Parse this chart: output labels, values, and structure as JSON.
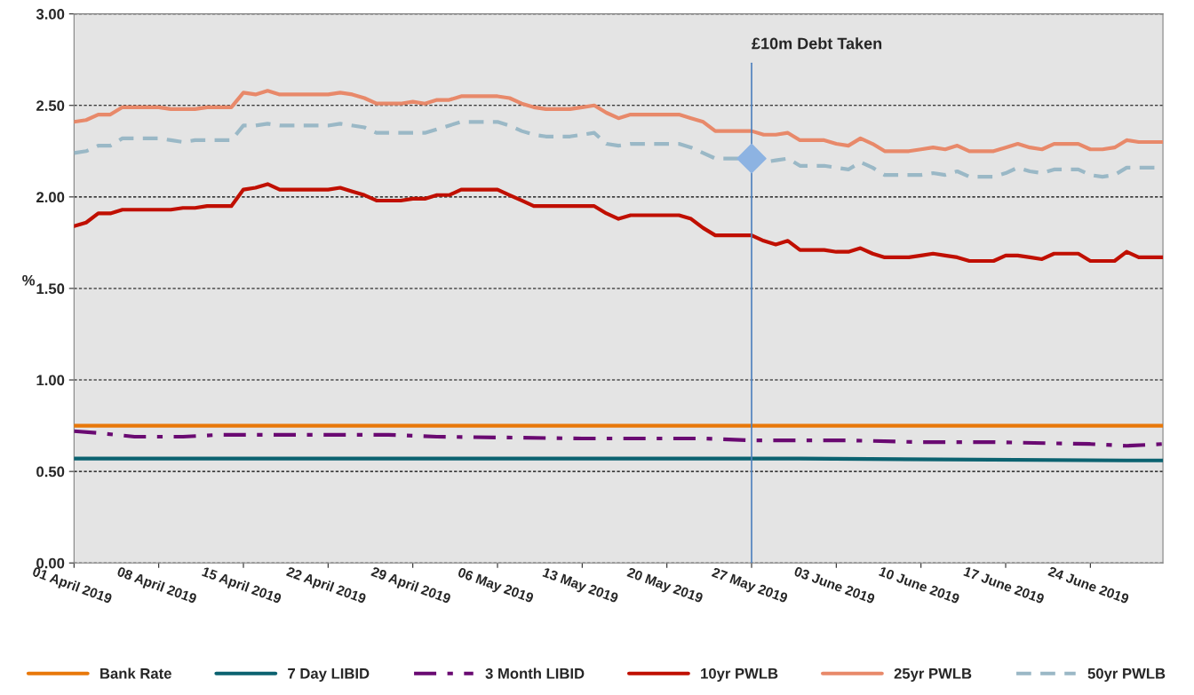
{
  "chart_data": {
    "type": "line",
    "ylabel": "%",
    "ylim": [
      0,
      3
    ],
    "yticks": [
      {
        "value": 0,
        "label": "0.00"
      },
      {
        "value": 0.5,
        "label": "0.50"
      },
      {
        "value": 1,
        "label": "1.00"
      },
      {
        "value": 1.5,
        "label": "1.50"
      },
      {
        "value": 2,
        "label": "2.00"
      },
      {
        "value": 2.5,
        "label": "2.50"
      },
      {
        "value": 3,
        "label": "3.00"
      }
    ],
    "xlim": [
      "2019-04-01",
      "2019-06-30"
    ],
    "xticks": [
      {
        "value": "2019-04-01",
        "label": "01 April 2019"
      },
      {
        "value": "2019-04-08",
        "label": "08 April 2019"
      },
      {
        "value": "2019-04-15",
        "label": "15 April 2019"
      },
      {
        "value": "2019-04-22",
        "label": "22 April 2019"
      },
      {
        "value": "2019-04-29",
        "label": "29 April 2019"
      },
      {
        "value": "2019-05-06",
        "label": "06 May 2019"
      },
      {
        "value": "2019-05-13",
        "label": "13 May 2019"
      },
      {
        "value": "2019-05-20",
        "label": "20 May 2019"
      },
      {
        "value": "2019-05-27",
        "label": "27 May 2019"
      },
      {
        "value": "2019-06-03",
        "label": "03 June 2019"
      },
      {
        "value": "2019-06-10",
        "label": "10 June 2019"
      },
      {
        "value": "2019-06-17",
        "label": "17 June 2019"
      },
      {
        "value": "2019-06-24",
        "label": "24 June 2019"
      }
    ],
    "grid": "y",
    "legend": "bottom",
    "ref_lines": [
      {
        "axis": "x",
        "value": "2019-05-27",
        "label": "£10m Debt Taken",
        "color": "#4f81bd"
      }
    ],
    "series": [
      {
        "name": "Bank Rate",
        "color": "#e8780a",
        "line_style": "solid",
        "x": [
          "2019-04-01",
          "2019-06-30"
        ],
        "values": [
          0.75,
          0.75
        ]
      },
      {
        "name": "7 Day LIBID",
        "color": "#0b6270",
        "line_style": "solid",
        "x": [
          "2019-04-01",
          "2019-05-31",
          "2019-06-27",
          "2019-06-30"
        ],
        "values": [
          0.57,
          0.57,
          0.56,
          0.56
        ]
      },
      {
        "name": "3 Month LIBID",
        "color": "#6a0a72",
        "line_style": "dashdot",
        "x": [
          "2019-04-01",
          "2019-04-03",
          "2019-04-06",
          "2019-04-10",
          "2019-04-13",
          "2019-04-27",
          "2019-05-01",
          "2019-05-13",
          "2019-05-23",
          "2019-05-27",
          "2019-06-04",
          "2019-06-10",
          "2019-06-16",
          "2019-06-24",
          "2019-06-27",
          "2019-06-30"
        ],
        "values": [
          0.72,
          0.71,
          0.69,
          0.69,
          0.7,
          0.7,
          0.69,
          0.68,
          0.68,
          0.67,
          0.67,
          0.66,
          0.66,
          0.65,
          0.64,
          0.65
        ]
      },
      {
        "name": "10yr PWLB",
        "color": "#c00f00",
        "line_style": "solid",
        "x": [
          "2019-04-01",
          "2019-04-02",
          "2019-04-03",
          "2019-04-04",
          "2019-04-05",
          "2019-04-09",
          "2019-04-10",
          "2019-04-11",
          "2019-04-12",
          "2019-04-14",
          "2019-04-15",
          "2019-04-16",
          "2019-04-17",
          "2019-04-18",
          "2019-04-22",
          "2019-04-23",
          "2019-04-24",
          "2019-04-25",
          "2019-04-26",
          "2019-04-28",
          "2019-04-29",
          "2019-04-30",
          "2019-05-01",
          "2019-05-02",
          "2019-05-03",
          "2019-05-06",
          "2019-05-07",
          "2019-05-08",
          "2019-05-09",
          "2019-05-14",
          "2019-05-15",
          "2019-05-16",
          "2019-05-17",
          "2019-05-21",
          "2019-05-22",
          "2019-05-23",
          "2019-05-24",
          "2019-05-27",
          "2019-05-28",
          "2019-05-29",
          "2019-05-30",
          "2019-05-31",
          "2019-06-02",
          "2019-06-03",
          "2019-06-04",
          "2019-06-05",
          "2019-06-06",
          "2019-06-07",
          "2019-06-09",
          "2019-06-10",
          "2019-06-11",
          "2019-06-12",
          "2019-06-13",
          "2019-06-14",
          "2019-06-16",
          "2019-06-17",
          "2019-06-18",
          "2019-06-19",
          "2019-06-20",
          "2019-06-21",
          "2019-06-23",
          "2019-06-24",
          "2019-06-26",
          "2019-06-27",
          "2019-06-28",
          "2019-06-30"
        ],
        "values": [
          1.84,
          1.86,
          1.91,
          1.91,
          1.93,
          1.93,
          1.94,
          1.94,
          1.95,
          1.95,
          2.04,
          2.05,
          2.07,
          2.04,
          2.04,
          2.05,
          2.03,
          2.01,
          1.98,
          1.98,
          1.99,
          1.99,
          2.01,
          2.01,
          2.04,
          2.04,
          2.01,
          1.98,
          1.95,
          1.95,
          1.91,
          1.88,
          1.9,
          1.9,
          1.88,
          1.83,
          1.79,
          1.79,
          1.76,
          1.74,
          1.76,
          1.71,
          1.71,
          1.7,
          1.7,
          1.72,
          1.69,
          1.67,
          1.67,
          1.68,
          1.69,
          1.68,
          1.67,
          1.65,
          1.65,
          1.68,
          1.68,
          1.67,
          1.66,
          1.69,
          1.69,
          1.65,
          1.65,
          1.7,
          1.67,
          1.67
        ]
      },
      {
        "name": "25yr PWLB",
        "color": "#e8896a",
        "line_style": "solid",
        "x": [
          "2019-04-01",
          "2019-04-02",
          "2019-04-03",
          "2019-04-04",
          "2019-04-05",
          "2019-04-08",
          "2019-04-09",
          "2019-04-11",
          "2019-04-12",
          "2019-04-14",
          "2019-04-15",
          "2019-04-16",
          "2019-04-17",
          "2019-04-18",
          "2019-04-22",
          "2019-04-23",
          "2019-04-24",
          "2019-04-25",
          "2019-04-26",
          "2019-04-28",
          "2019-04-29",
          "2019-04-30",
          "2019-05-01",
          "2019-05-02",
          "2019-05-03",
          "2019-05-06",
          "2019-05-07",
          "2019-05-08",
          "2019-05-09",
          "2019-05-10",
          "2019-05-12",
          "2019-05-13",
          "2019-05-14",
          "2019-05-15",
          "2019-05-16",
          "2019-05-17",
          "2019-05-21",
          "2019-05-22",
          "2019-05-23",
          "2019-05-24",
          "2019-05-27",
          "2019-05-28",
          "2019-05-29",
          "2019-05-30",
          "2019-05-31",
          "2019-06-02",
          "2019-06-03",
          "2019-06-04",
          "2019-06-05",
          "2019-06-06",
          "2019-06-07",
          "2019-06-09",
          "2019-06-10",
          "2019-06-11",
          "2019-06-12",
          "2019-06-13",
          "2019-06-14",
          "2019-06-16",
          "2019-06-17",
          "2019-06-18",
          "2019-06-19",
          "2019-06-20",
          "2019-06-21",
          "2019-06-23",
          "2019-06-24",
          "2019-06-25",
          "2019-06-26",
          "2019-06-27",
          "2019-06-28",
          "2019-06-30"
        ],
        "values": [
          2.41,
          2.42,
          2.45,
          2.45,
          2.49,
          2.49,
          2.48,
          2.48,
          2.49,
          2.49,
          2.57,
          2.56,
          2.58,
          2.56,
          2.56,
          2.57,
          2.56,
          2.54,
          2.51,
          2.51,
          2.52,
          2.51,
          2.53,
          2.53,
          2.55,
          2.55,
          2.54,
          2.51,
          2.49,
          2.48,
          2.48,
          2.49,
          2.5,
          2.46,
          2.43,
          2.45,
          2.45,
          2.43,
          2.41,
          2.36,
          2.36,
          2.34,
          2.34,
          2.35,
          2.31,
          2.31,
          2.29,
          2.28,
          2.32,
          2.29,
          2.25,
          2.25,
          2.26,
          2.27,
          2.26,
          2.28,
          2.25,
          2.25,
          2.27,
          2.29,
          2.27,
          2.26,
          2.29,
          2.29,
          2.26,
          2.26,
          2.27,
          2.31,
          2.3,
          2.3
        ]
      },
      {
        "name": "50yr PWLB",
        "color": "#9ab8c6",
        "line_style": "dashed",
        "x": [
          "2019-04-01",
          "2019-04-02",
          "2019-04-03",
          "2019-04-04",
          "2019-04-05",
          "2019-04-08",
          "2019-04-09",
          "2019-04-10",
          "2019-04-11",
          "2019-04-14",
          "2019-04-15",
          "2019-04-16",
          "2019-04-17",
          "2019-04-18",
          "2019-04-22",
          "2019-04-23",
          "2019-04-25",
          "2019-04-26",
          "2019-04-30",
          "2019-05-01",
          "2019-05-02",
          "2019-05-03",
          "2019-05-06",
          "2019-05-07",
          "2019-05-08",
          "2019-05-09",
          "2019-05-10",
          "2019-05-12",
          "2019-05-13",
          "2019-05-14",
          "2019-05-15",
          "2019-05-16",
          "2019-05-17",
          "2019-05-21",
          "2019-05-22",
          "2019-05-23",
          "2019-05-24",
          "2019-05-27",
          "2019-05-28",
          "2019-05-29",
          "2019-05-30",
          "2019-05-31",
          "2019-06-02",
          "2019-06-03",
          "2019-06-04",
          "2019-06-05",
          "2019-06-06",
          "2019-06-07",
          "2019-06-10",
          "2019-06-11",
          "2019-06-12",
          "2019-06-13",
          "2019-06-14",
          "2019-06-16",
          "2019-06-17",
          "2019-06-18",
          "2019-06-19",
          "2019-06-20",
          "2019-06-21",
          "2019-06-23",
          "2019-06-24",
          "2019-06-25",
          "2019-06-26",
          "2019-06-27",
          "2019-06-30"
        ],
        "values": [
          2.24,
          2.25,
          2.28,
          2.28,
          2.32,
          2.32,
          2.31,
          2.3,
          2.31,
          2.31,
          2.39,
          2.39,
          2.4,
          2.39,
          2.39,
          2.4,
          2.38,
          2.35,
          2.35,
          2.37,
          2.39,
          2.41,
          2.41,
          2.39,
          2.36,
          2.34,
          2.33,
          2.33,
          2.34,
          2.35,
          2.29,
          2.28,
          2.29,
          2.29,
          2.27,
          2.24,
          2.21,
          2.21,
          2.19,
          2.2,
          2.21,
          2.17,
          2.17,
          2.16,
          2.15,
          2.19,
          2.16,
          2.12,
          2.12,
          2.13,
          2.12,
          2.14,
          2.11,
          2.11,
          2.13,
          2.16,
          2.14,
          2.13,
          2.15,
          2.15,
          2.12,
          2.11,
          2.12,
          2.16,
          2.16
        ]
      },
      {
        "type": "scatter",
        "marker": "diamond",
        "color": "#8db3e2",
        "x": [
          "2019-05-27"
        ],
        "values": [
          2.21
        ]
      }
    ]
  }
}
